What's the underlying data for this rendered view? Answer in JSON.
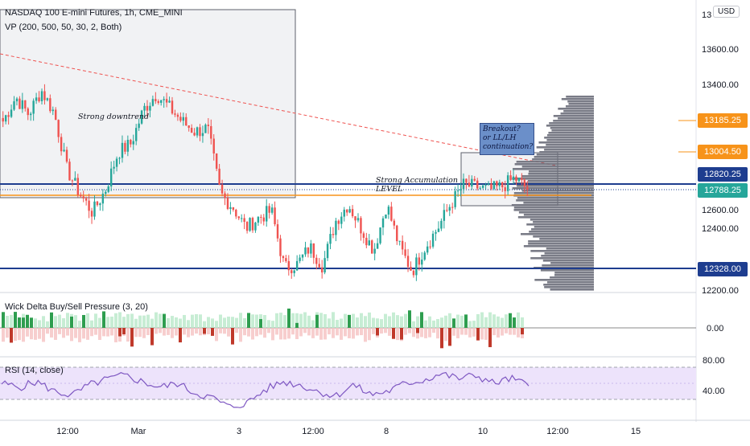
{
  "header": {
    "symbol_title": "NASDAQ 100 E-mini Futures, 1h, CME_MINI",
    "vp_indicator": "VP (200, 500, 50, 30, 2, Both)",
    "currency_button": "USD"
  },
  "annotations": {
    "strong_downtrend": "Strong downtrend",
    "strong_accumulation": "Strong Accumulation",
    "level": "LEVEL",
    "callout_lines": [
      "Breakout?",
      "or LL/LH",
      "continuation?"
    ]
  },
  "price_scale": {
    "ticks": [
      "13600.00",
      "13400.00",
      "12600.00",
      "12400.00",
      "12200.00"
    ],
    "partial_top_tick": "13",
    "tags": [
      {
        "label": "13185.25",
        "color": "#f7931a",
        "kind": "horizontal-level"
      },
      {
        "label": "13004.50",
        "color": "#f7931a",
        "kind": "horizontal-level"
      },
      {
        "label": "12820.25",
        "color": "#1e3d8f",
        "kind": "support-resistance"
      },
      {
        "label": "12788.25",
        "color": "#26a69a",
        "kind": "last-price"
      },
      {
        "label": "12328.00",
        "color": "#1e3d8f",
        "kind": "support"
      }
    ]
  },
  "time_axis": {
    "labels": [
      "12:00",
      "Mar",
      "3",
      "12:00",
      "8",
      "10",
      "12:00",
      "15"
    ]
  },
  "wick_delta_panel": {
    "title": "Wick Delta Buy/Sell Pressure (3, 20)",
    "axis_labels": [
      "0.00"
    ],
    "colors": {
      "buy": "#2e9e4f",
      "sell": "#c0392b",
      "buy_band": "#b9e8c9",
      "sell_band": "#f5c2c2"
    }
  },
  "rsi_panel": {
    "title": "RSI (14, close)",
    "axis_labels": [
      "80.00",
      "40.00"
    ],
    "line_color": "#7e57c2",
    "band_color": "#ede3fb"
  },
  "colors": {
    "up": "#26a69a",
    "down": "#ef5350",
    "blue_level": "#1e3d8f",
    "orange_level": "#f7931a",
    "trendline": "#ef5350",
    "volume_profile": "#6b6e7a"
  },
  "chart_data": {
    "type": "candlestick",
    "series": [
      {
        "name": "",
        "close_path_approx": [
          13180,
          13320,
          13220,
          13360,
          13230,
          12900,
          12760,
          12650,
          12780,
          13000,
          13050,
          13250,
          13340,
          13260,
          13180,
          13120,
          13140,
          12760,
          12680,
          12560,
          12620,
          12660,
          12330,
          12350,
          12450,
          12340,
          12600,
          12700,
          12560,
          12430,
          12700,
          12450,
          12310,
          12450,
          12560,
          12700,
          12810,
          12800,
          12780,
          12800,
          12850,
          12788
        ]
      }
    ],
    "price_levels": [
      13185.25,
      13004.5,
      12820.25,
      12788.25,
      12328.0
    ],
    "yrange": [
      12200,
      13750
    ]
  }
}
